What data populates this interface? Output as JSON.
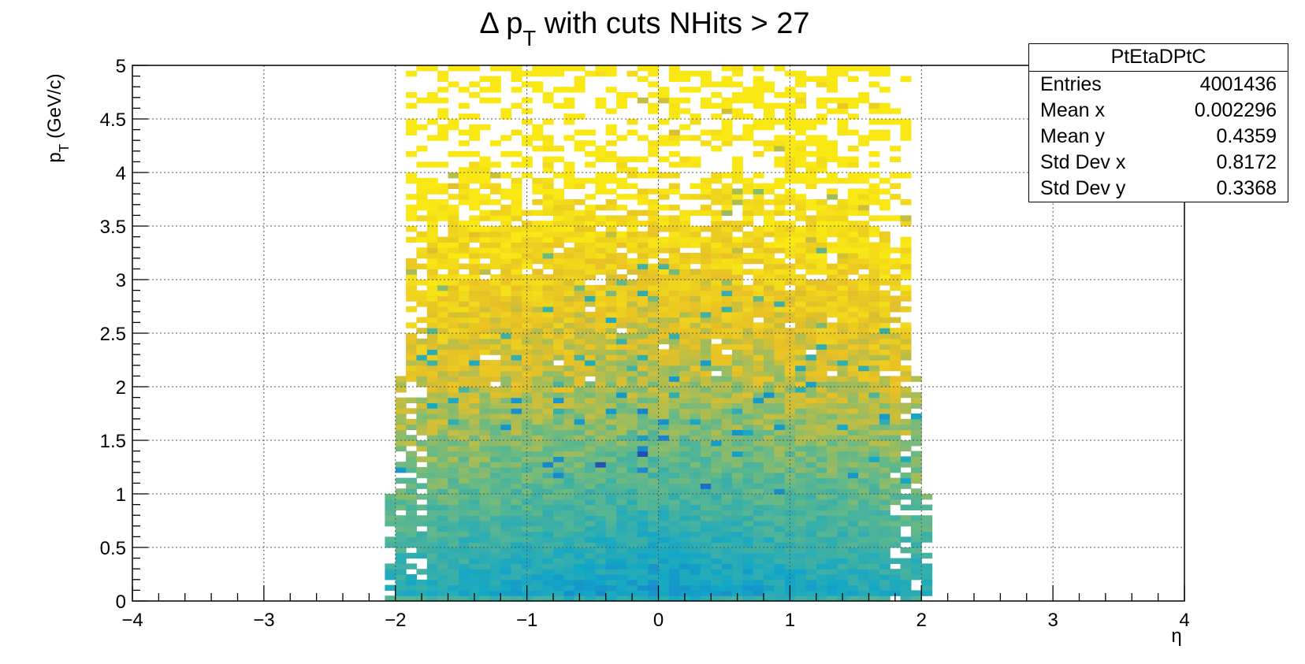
{
  "title": "Δ p_T with cuts NHits > 27",
  "stats": {
    "name": "PtEtaDPtC",
    "rows": [
      {
        "label": "Entries",
        "value": "4001436"
      },
      {
        "label": "Mean x",
        "value": "0.002296"
      },
      {
        "label": "Mean y",
        "value": "0.4359"
      },
      {
        "label": "Std Dev x",
        "value": "0.8172"
      },
      {
        "label": "Std Dev y",
        "value": "0.3368"
      }
    ]
  },
  "colors": {
    "low": "#f9e814",
    "mid_low": "#e7c026",
    "mid": "#66b987",
    "mid_high": "#13a7c6",
    "high": "#1a7fd0",
    "max": "#2448a8"
  },
  "chart_data": {
    "type": "heatmap",
    "title": "Δ p_T with cuts NHits > 27",
    "xlabel": "η",
    "ylabel": "p_T (GeV/c)",
    "xlim": [
      -4,
      4
    ],
    "ylim": [
      0,
      5
    ],
    "xticks": [
      "−4",
      "−3",
      "−2",
      "−1",
      "0",
      "1",
      "2",
      "3",
      "4"
    ],
    "yticks": [
      "0",
      "0.5",
      "1",
      "1.5",
      "2",
      "2.5",
      "3",
      "3.5",
      "4",
      "4.5",
      "5"
    ],
    "grid": true,
    "bin_width_eta": 0.08,
    "bin_height_pt": 0.05,
    "occupied_region": {
      "eta_range": [
        -2.08,
        2.08
      ],
      "pt_range": [
        0,
        5
      ],
      "peak_eta": 0,
      "peak_pt": 0.35
    },
    "entries": 4001436,
    "mean_x": 0.002296,
    "mean_y": 0.4359,
    "std_x": 0.8172,
    "std_y": 0.3368
  }
}
